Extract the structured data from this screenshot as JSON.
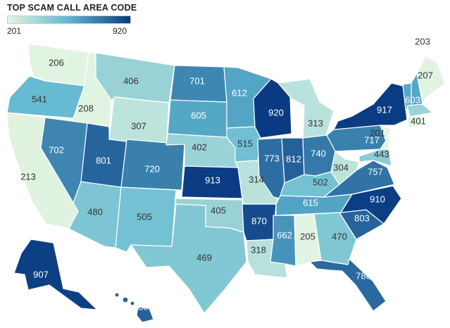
{
  "title": "TOP SCAM CALL AREA CODE",
  "legend": {
    "min_label": "201",
    "max_label": "920",
    "min_value": 201,
    "max_value": 920,
    "color_low": "#e3f5e1",
    "color_mid": "#5fb7d0",
    "color_high": "#0a3b82"
  },
  "states": [
    {
      "state": "WA",
      "code": "206"
    },
    {
      "state": "OR",
      "code": "541"
    },
    {
      "state": "CA",
      "code": "213"
    },
    {
      "state": "ID",
      "code": "208"
    },
    {
      "state": "NV",
      "code": "702"
    },
    {
      "state": "UT",
      "code": "801"
    },
    {
      "state": "AZ",
      "code": "480"
    },
    {
      "state": "MT",
      "code": "406"
    },
    {
      "state": "WY",
      "code": "307"
    },
    {
      "state": "CO",
      "code": "720"
    },
    {
      "state": "NM",
      "code": "505"
    },
    {
      "state": "ND",
      "code": "701"
    },
    {
      "state": "SD",
      "code": "605"
    },
    {
      "state": "NE",
      "code": "402"
    },
    {
      "state": "KS",
      "code": "913"
    },
    {
      "state": "OK",
      "code": "405"
    },
    {
      "state": "TX",
      "code": "469"
    },
    {
      "state": "MN",
      "code": "612"
    },
    {
      "state": "IA",
      "code": "515"
    },
    {
      "state": "MO",
      "code": "314"
    },
    {
      "state": "AR",
      "code": "870"
    },
    {
      "state": "LA",
      "code": "318"
    },
    {
      "state": "WI",
      "code": "920"
    },
    {
      "state": "IL",
      "code": "773"
    },
    {
      "state": "MI",
      "code": "313"
    },
    {
      "state": "IN",
      "code": "812"
    },
    {
      "state": "OH",
      "code": "740"
    },
    {
      "state": "KY",
      "code": "502"
    },
    {
      "state": "TN",
      "code": "615"
    },
    {
      "state": "MS",
      "code": "662"
    },
    {
      "state": "AL",
      "code": "205"
    },
    {
      "state": "GA",
      "code": "470"
    },
    {
      "state": "FL",
      "code": "786"
    },
    {
      "state": "SC",
      "code": "803"
    },
    {
      "state": "NC",
      "code": "910"
    },
    {
      "state": "VA",
      "code": "757"
    },
    {
      "state": "WV",
      "code": "304"
    },
    {
      "state": "PA",
      "code": "717"
    },
    {
      "state": "NY",
      "code": "917"
    },
    {
      "state": "NJ",
      "code": "201"
    },
    {
      "state": "MD",
      "code": "443"
    },
    {
      "state": "VT",
      "code": "603"
    },
    {
      "state": "NH",
      "code": "603"
    },
    {
      "state": "ME",
      "code": "207"
    },
    {
      "state": "MA",
      "code": "401"
    },
    {
      "state": "CT",
      "code": "203"
    },
    {
      "state": "AK",
      "code": "907"
    },
    {
      "state": "HI",
      "code": "808"
    }
  ]
}
